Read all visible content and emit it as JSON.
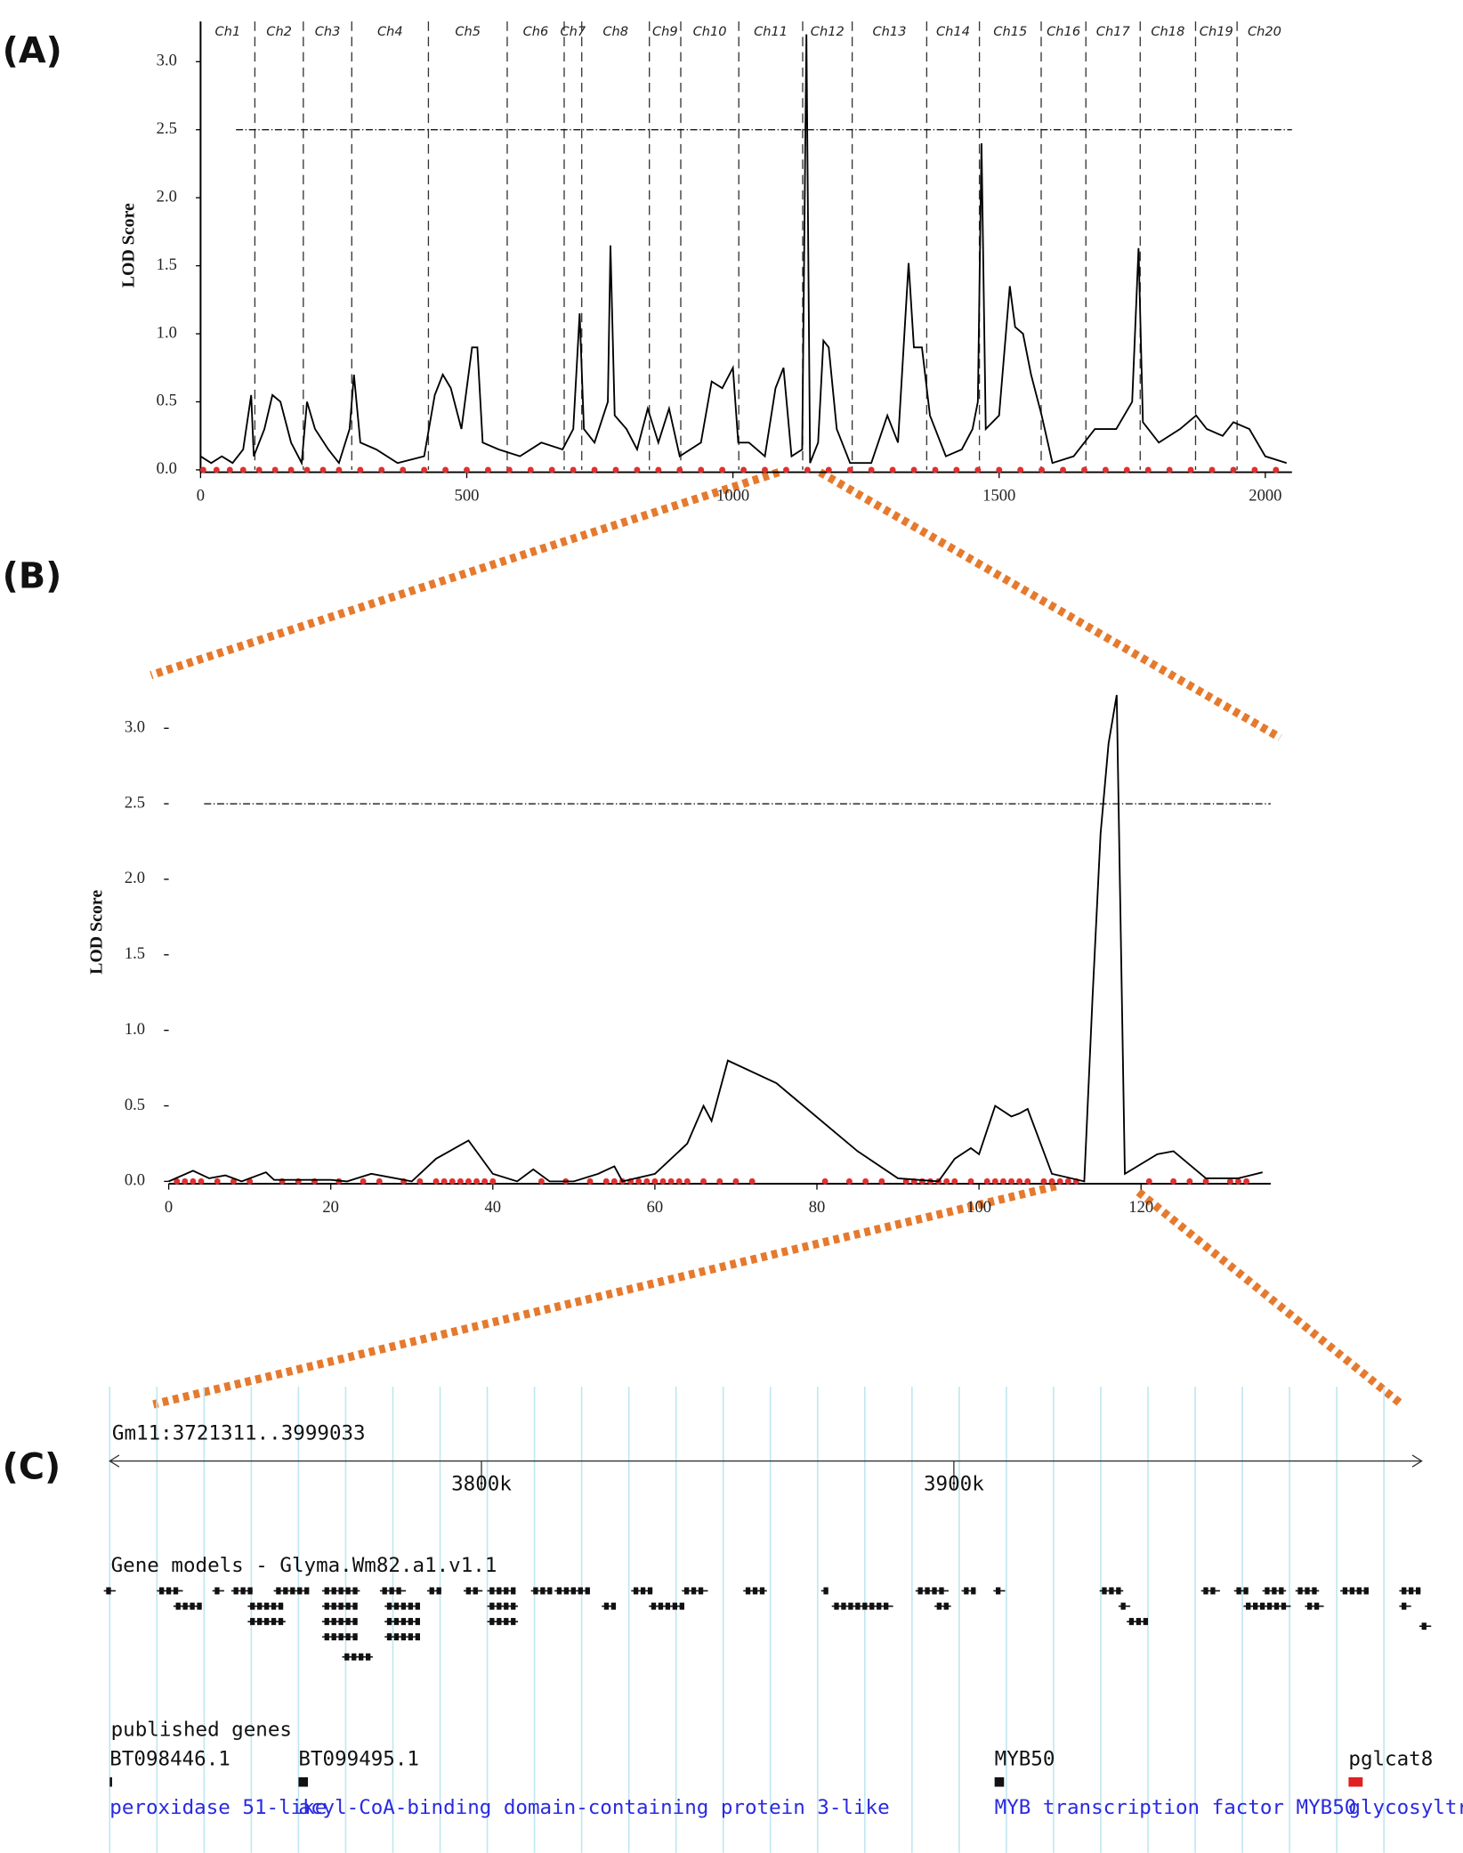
{
  "chart_data": [
    {
      "type": "line",
      "panel": "(A)",
      "ylabel": "LOD Score",
      "color": "#000000",
      "marker_color": "#e03030",
      "xlim": [
        0,
        2050
      ],
      "xticks": [
        0,
        500,
        1000,
        1500,
        2000
      ],
      "ylim": [
        0,
        3.3
      ],
      "yticks": [
        {
          "value": 0,
          "label": "0.0"
        },
        {
          "value": 0.5,
          "label": "0.5"
        },
        {
          "value": 1,
          "label": "1.0"
        },
        {
          "value": 1.5,
          "label": "1.5"
        },
        {
          "value": 2,
          "label": "2.0"
        },
        {
          "value": 2.5,
          "label": "2.5"
        },
        {
          "value": 3,
          "label": "3.0"
        }
      ],
      "threshold": 2.5,
      "chromosomes": [
        "Ch1",
        "Ch2",
        "Ch3",
        "Ch4",
        "Ch5",
        "Ch6",
        "Ch7",
        "Ch8",
        "Ch9",
        "Ch10",
        "Ch11",
        "Ch12",
        "Ch13",
        "Ch14",
        "Ch15",
        "Ch16",
        "Ch17",
        "Ch18",
        "Ch19",
        "Ch20"
      ],
      "chromosome_boundaries": [
        102,
        193,
        284,
        428,
        576,
        683,
        716,
        843,
        902,
        1011,
        1131,
        1224,
        1364,
        1463,
        1579,
        1663,
        1765,
        1869,
        1947
      ],
      "x": [
        0,
        20,
        40,
        60,
        80,
        95,
        100,
        120,
        135,
        150,
        170,
        190,
        200,
        215,
        240,
        260,
        280,
        288,
        300,
        330,
        370,
        420,
        440,
        455,
        470,
        490,
        510,
        520,
        530,
        560,
        600,
        640,
        680,
        700,
        712,
        720,
        740,
        765,
        770,
        778,
        800,
        820,
        840,
        860,
        880,
        900,
        940,
        960,
        980,
        1000,
        1010,
        1030,
        1060,
        1080,
        1095,
        1110,
        1130,
        1138,
        1145,
        1160,
        1170,
        1180,
        1195,
        1220,
        1260,
        1290,
        1310,
        1330,
        1340,
        1355,
        1370,
        1400,
        1430,
        1450,
        1460,
        1467,
        1475,
        1500,
        1520,
        1530,
        1545,
        1560,
        1580,
        1600,
        1640,
        1680,
        1720,
        1750,
        1762,
        1770,
        1800,
        1840,
        1870,
        1890,
        1920,
        1940,
        1970,
        2000,
        2040
      ],
      "values": [
        0.1,
        0.05,
        0.1,
        0.05,
        0.15,
        0.55,
        0.1,
        0.3,
        0.55,
        0.5,
        0.2,
        0.05,
        0.5,
        0.3,
        0.15,
        0.05,
        0.3,
        0.7,
        0.2,
        0.15,
        0.05,
        0.1,
        0.55,
        0.7,
        0.6,
        0.3,
        0.9,
        0.9,
        0.2,
        0.15,
        0.1,
        0.2,
        0.15,
        0.3,
        1.15,
        0.3,
        0.2,
        0.5,
        1.65,
        0.4,
        0.3,
        0.15,
        0.45,
        0.2,
        0.45,
        0.1,
        0.2,
        0.65,
        0.6,
        0.75,
        0.2,
        0.2,
        0.1,
        0.6,
        0.75,
        0.1,
        0.15,
        3.2,
        0.05,
        0.2,
        0.95,
        0.9,
        0.3,
        0.05,
        0.05,
        0.4,
        0.2,
        1.52,
        0.9,
        0.9,
        0.4,
        0.1,
        0.15,
        0.3,
        0.5,
        2.4,
        0.3,
        0.4,
        1.35,
        1.05,
        1.0,
        0.7,
        0.4,
        0.05,
        0.1,
        0.3,
        0.3,
        0.5,
        1.63,
        0.35,
        0.2,
        0.3,
        0.4,
        0.3,
        0.25,
        0.35,
        0.3,
        0.1,
        0.05
      ],
      "markers": [
        5,
        30,
        55,
        80,
        110,
        140,
        170,
        200,
        230,
        260,
        300,
        340,
        380,
        420,
        460,
        500,
        540,
        580,
        620,
        660,
        700,
        740,
        780,
        820,
        860,
        900,
        940,
        980,
        1020,
        1060,
        1100,
        1140,
        1180,
        1220,
        1260,
        1300,
        1340,
        1380,
        1420,
        1460,
        1500,
        1540,
        1580,
        1620,
        1660,
        1700,
        1740,
        1780,
        1820,
        1860,
        1900,
        1940,
        1980,
        2020
      ]
    },
    {
      "type": "line",
      "panel": "(B)",
      "ylabel": "LOD Score",
      "color": "#000000",
      "marker_color": "#e03030",
      "xlim": [
        0,
        136
      ],
      "xticks": [
        0,
        20,
        40,
        60,
        80,
        100,
        120
      ],
      "ylim": [
        0,
        3.3
      ],
      "yticks": [
        {
          "value": 0,
          "label": "0.0"
        },
        {
          "value": 0.5,
          "label": "0.5"
        },
        {
          "value": 1,
          "label": "1.0"
        },
        {
          "value": 1.5,
          "label": "1.5"
        },
        {
          "value": 2,
          "label": "2.0"
        },
        {
          "value": 2.5,
          "label": "2.5"
        },
        {
          "value": 3,
          "label": "3.0"
        }
      ],
      "threshold": 2.5,
      "x": [
        0,
        3,
        5,
        7,
        9,
        12,
        13,
        20,
        22,
        25,
        28,
        30,
        33,
        37,
        40,
        43,
        45,
        47,
        50,
        53,
        55,
        56,
        60,
        64,
        66,
        67,
        69,
        75,
        85,
        90,
        95,
        97,
        99,
        100,
        102,
        104,
        105,
        106,
        109,
        113,
        114,
        115,
        116,
        117,
        118,
        122,
        124,
        128,
        132,
        135
      ],
      "values": [
        0.0,
        0.07,
        0.02,
        0.04,
        0.0,
        0.06,
        0.01,
        0.01,
        0.0,
        0.05,
        0.02,
        0.0,
        0.15,
        0.27,
        0.05,
        0.0,
        0.08,
        0.0,
        0.0,
        0.05,
        0.1,
        0.0,
        0.05,
        0.25,
        0.5,
        0.4,
        0.8,
        0.65,
        0.2,
        0.02,
        0.0,
        0.15,
        0.22,
        0.18,
        0.5,
        0.43,
        0.45,
        0.48,
        0.05,
        0.0,
        1.2,
        2.3,
        2.9,
        3.22,
        0.05,
        0.18,
        0.2,
        0.02,
        0.02,
        0.06
      ],
      "markers": [
        1,
        2,
        3,
        4,
        6,
        8,
        10,
        14,
        16,
        18,
        21,
        24,
        26,
        29,
        31,
        33,
        34,
        35,
        36,
        37,
        38,
        39,
        40,
        46,
        49,
        52,
        54,
        55,
        56,
        57,
        58,
        59,
        60,
        61,
        62,
        63,
        64,
        66,
        68,
        70,
        72,
        81,
        84,
        86,
        88,
        91,
        92,
        93,
        94,
        95,
        96,
        97,
        99,
        101,
        102,
        103,
        104,
        105,
        106,
        108,
        109,
        110,
        111,
        112,
        121,
        124,
        126,
        128,
        131,
        132,
        133
      ]
    }
  ],
  "browser": {
    "panel": "(C)",
    "title": "Gm11:3721311..3999033",
    "range": [
      3721311,
      3999033
    ],
    "ticks": [
      {
        "value": 3800000,
        "label": "3800k"
      },
      {
        "value": 3900000,
        "label": "3900k"
      }
    ],
    "gene_track": "Gene models - Glyma.Wm82.a1.v1.1",
    "published_track": "published genes",
    "published": [
      {
        "name": "BT098446.1",
        "description": "peroxidase 51-like"
      },
      {
        "name": "BT099495.1",
        "description": "acyl-CoA-binding domain-containing protein 3-like"
      },
      {
        "name": "MYB50",
        "description": "MYB transcription factor MYB50"
      },
      {
        "name": "pglcat8",
        "description": "glycosyltransf"
      }
    ]
  }
}
